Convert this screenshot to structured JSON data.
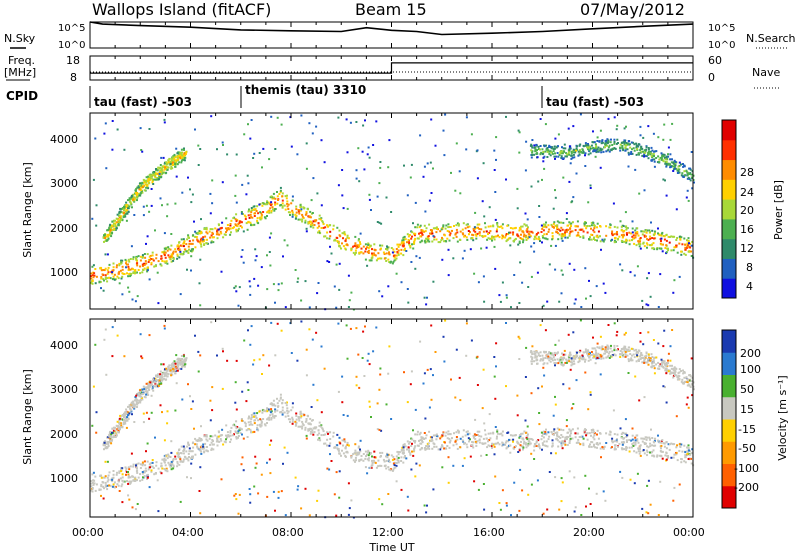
{
  "header": {
    "title": "Wallops Island (fitACF)",
    "beam": "Beam 15",
    "date": "07/May/2012"
  },
  "noise_panel": {
    "left_label": "N.Sky",
    "right_label": "N.Search",
    "ytick_top": "10^5",
    "ytick_bottom": "10^0"
  },
  "freq_panel": {
    "left_label": "Freq.",
    "left_unit": "[MHz]",
    "left_ticks": [
      "18",
      "8"
    ],
    "right_label": "Nave",
    "right_ticks": [
      "60",
      "0"
    ]
  },
  "cpid_panel": {
    "label": "CPID",
    "segments": [
      {
        "text": "tau (fast) -503",
        "start_hour": 0
      },
      {
        "text": "themis (tau) 3310",
        "start_hour": 6
      },
      {
        "text": "tau (fast) -503",
        "start_hour": 18
      }
    ]
  },
  "power_panel": {
    "ylabel": "Slant Range [km]",
    "yticks": [
      "1000",
      "2000",
      "3000",
      "4000"
    ],
    "colorbar_label": "Power [dB]",
    "colorbar_ticks": [
      "28",
      "24",
      "20",
      "16",
      "12",
      "8",
      "4"
    ]
  },
  "velocity_panel": {
    "ylabel": "Slant Range [km]",
    "yticks": [
      "1000",
      "2000",
      "3000",
      "4000"
    ],
    "colorbar_label": "Velocity [m s⁻¹]",
    "colorbar_ticks": [
      "200",
      "100",
      "50",
      "15",
      "-15",
      "-50",
      "-100",
      "-200"
    ]
  },
  "xaxis": {
    "label": "Time UT",
    "ticks": [
      "00:00",
      "04:00",
      "08:00",
      "12:00",
      "16:00",
      "20:00",
      "00:00"
    ]
  },
  "colors": {
    "power_scale": [
      "#1010e0",
      "#2060c0",
      "#2f8a6a",
      "#4caf50",
      "#a8d838",
      "#ffd000",
      "#ff8c00",
      "#ff3000",
      "#e00000"
    ],
    "velocity_scale": [
      "#e00000",
      "#ff6000",
      "#ff9a00",
      "#ffd000",
      "#c8c8c0",
      "#49b030",
      "#2a7ad0",
      "#1a3ab0"
    ],
    "ground_scatter": "#c8c8c0"
  },
  "chart_data": [
    {
      "type": "line",
      "name": "noise",
      "x_range": [
        0,
        24
      ],
      "x_unit": "hours UT",
      "y_log": true,
      "ylim": [
        1,
        100000
      ],
      "series": [
        {
          "name": "N.Sky",
          "x": [
            0,
            0.5,
            2,
            4,
            6,
            8,
            10,
            11,
            12,
            13,
            14,
            16,
            18,
            20,
            22,
            24
          ],
          "y": [
            100000,
            40000,
            20000,
            10000,
            3000,
            2000,
            1500,
            8000,
            2500,
            1500,
            400,
            700,
            1500,
            5000,
            15000,
            40000
          ]
        },
        {
          "name": "N.Search",
          "x": [
            0,
            24
          ],
          "y": [
            1,
            1
          ]
        }
      ]
    },
    {
      "type": "line",
      "name": "frequency_nave",
      "x_range": [
        0,
        24
      ],
      "series": [
        {
          "name": "Freq.",
          "unit": "MHz",
          "x": [
            0,
            12,
            12,
            24
          ],
          "y": [
            10,
            10,
            16,
            16
          ]
        },
        {
          "name": "Nave",
          "x": [
            0,
            24
          ],
          "y": [
            20,
            20
          ]
        }
      ]
    },
    {
      "type": "heatmap",
      "name": "power",
      "ylabel": "Slant Range [km]",
      "ylim": [
        0,
        4500
      ],
      "x_range": [
        0,
        24
      ],
      "color_range": [
        0,
        30
      ],
      "bands": [
        {
          "desc": "main F-region echo",
          "x": [
            0,
            1,
            2,
            3,
            4,
            5,
            6,
            7,
            7.5,
            8,
            9,
            10,
            11,
            12,
            13,
            14,
            15,
            16,
            17,
            18,
            19,
            20,
            21,
            22,
            23,
            24
          ],
          "y": [
            800,
            900,
            1050,
            1250,
            1550,
            1800,
            2050,
            2300,
            2600,
            2350,
            2000,
            1600,
            1350,
            1250,
            1750,
            1750,
            1800,
            1800,
            1750,
            1800,
            1850,
            1800,
            1750,
            1650,
            1550,
            1400
          ],
          "level": 26
        },
        {
          "desc": "upper band",
          "x": [
            0.5,
            2,
            3,
            3.8
          ],
          "y": [
            1600,
            2800,
            3300,
            3600
          ],
          "level": 20
        },
        {
          "desc": "upper band late",
          "x": [
            17.5,
            19,
            20,
            21,
            22,
            23,
            24
          ],
          "y": [
            3650,
            3600,
            3750,
            3800,
            3650,
            3400,
            3050
          ],
          "level": 14
        }
      ]
    },
    {
      "type": "heatmap",
      "name": "velocity",
      "ylabel": "Slant Range [km]",
      "ylim": [
        0,
        4500
      ],
      "x_range": [
        0,
        24
      ],
      "color_range": [
        -200,
        200
      ]
    }
  ]
}
